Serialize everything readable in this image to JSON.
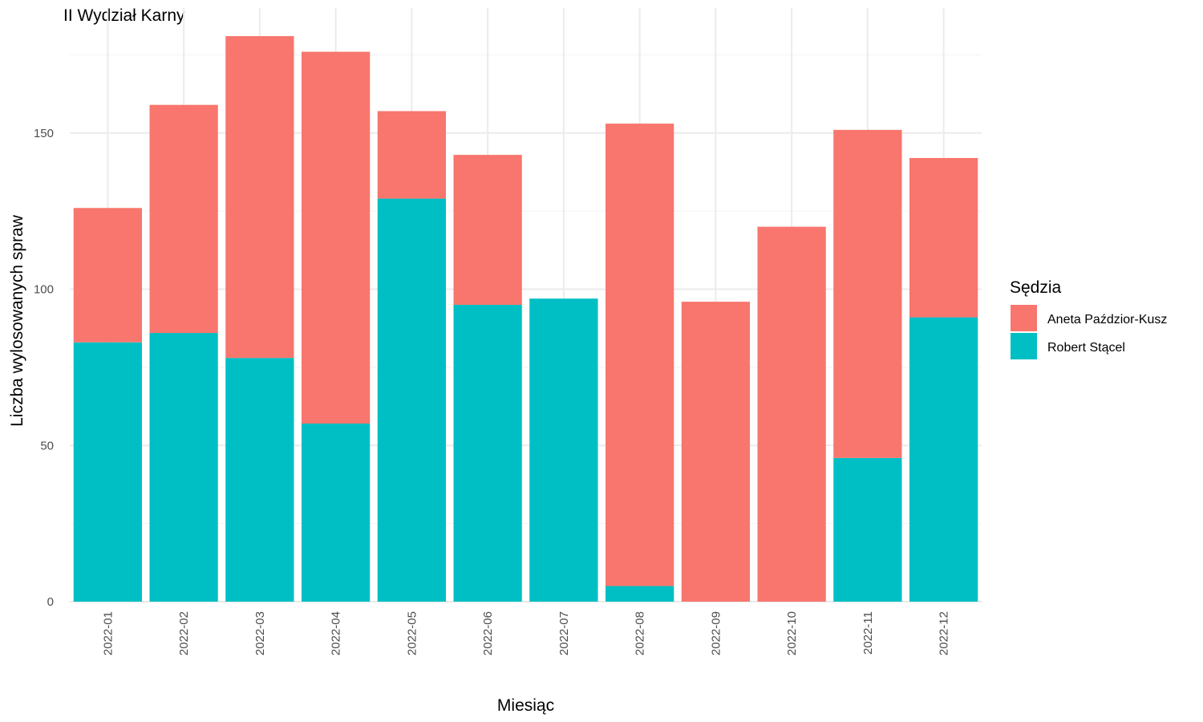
{
  "chart_data": {
    "type": "bar",
    "stacked": true,
    "title": "II Wydział Karny",
    "xlabel": "Miesiąc",
    "ylabel": "Liczba wylosowanych spraw",
    "categories": [
      "2022-01",
      "2022-02",
      "2022-03",
      "2022-04",
      "2022-05",
      "2022-06",
      "2022-07",
      "2022-08",
      "2022-09",
      "2022-10",
      "2022-11",
      "2022-12"
    ],
    "series": [
      {
        "name": "Robert Stącel",
        "color": "#00BFC4",
        "values": [
          83,
          86,
          78,
          57,
          129,
          95,
          97,
          5,
          0,
          0,
          46,
          91
        ]
      },
      {
        "name": "Aneta Paździor-Kusz",
        "color": "#F8766D",
        "values": [
          43,
          73,
          103,
          119,
          28,
          48,
          0,
          148,
          96,
          120,
          105,
          51
        ]
      }
    ],
    "ylim": [
      0,
      190
    ],
    "yticks": [
      0,
      50,
      100,
      150
    ],
    "grid": true,
    "legend": {
      "title": "Sędzia",
      "position": "right",
      "entries": [
        "Aneta Paździor-Kusz",
        "Robert Stącel"
      ]
    }
  }
}
